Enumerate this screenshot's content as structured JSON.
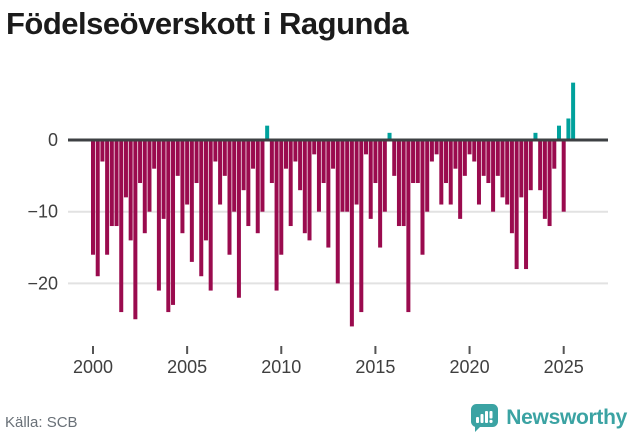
{
  "header": {
    "title": "Födelseöverskott i Ragunda"
  },
  "footer": {
    "source": "Källa: SCB",
    "brand_name": "Newsworthy"
  },
  "colors": {
    "negative": "#9a0b4e",
    "positive": "#00a19c",
    "zero_line": "#3d4043",
    "gridline": "#e2e2e2",
    "tick": "#555555",
    "axis_text": "#3f3f3f",
    "title_text": "#1b1b1b",
    "source_text": "#697077",
    "brand": "#3ba3a3",
    "background": "#ffffff"
  },
  "chart_data": {
    "type": "bar",
    "title": "Födelseöverskott i Ragunda",
    "x_start_year": 2000,
    "periods_per_year": 4,
    "x_ticks": [
      2000,
      2005,
      2010,
      2015,
      2020,
      2025
    ],
    "x_tick_labels": [
      "2000",
      "2005",
      "2010",
      "2015",
      "2020",
      "2025"
    ],
    "y_ticks": [
      0,
      -10,
      -20
    ],
    "y_tick_labels": [
      "0",
      "−10",
      "−20"
    ],
    "ylim": [
      -27,
      10
    ],
    "grid": true,
    "legend": "none",
    "values": [
      -16,
      -19,
      -3,
      -16,
      -12,
      -12,
      -24,
      -8,
      -14,
      -25,
      -6,
      -13,
      -10,
      -4,
      -21,
      -11,
      -24,
      -23,
      -5,
      -13,
      -9,
      -17,
      -6,
      -19,
      -14,
      -21,
      -3,
      -9,
      -5,
      -16,
      -10,
      -22,
      -7,
      -12,
      -4,
      -13,
      -10,
      2,
      -6,
      -21,
      -16,
      -4,
      -12,
      -3,
      -7,
      -13,
      -14,
      -2,
      -10,
      -6,
      -15,
      -4,
      -20,
      -10,
      -10,
      -26,
      -9,
      -24,
      -2,
      -11,
      -6,
      -15,
      -10,
      1,
      -5,
      -12,
      -12,
      -24,
      -6,
      -6,
      -16,
      -10,
      -3,
      -2,
      -9,
      -6,
      -9,
      -4,
      -11,
      -5,
      -2,
      -3,
      -9,
      -5,
      -6,
      -10,
      -5,
      -8,
      -9,
      -13,
      -18,
      -8,
      -18,
      -7,
      1,
      -7,
      -11,
      -12,
      -4,
      2,
      -10,
      3,
      8
    ]
  }
}
